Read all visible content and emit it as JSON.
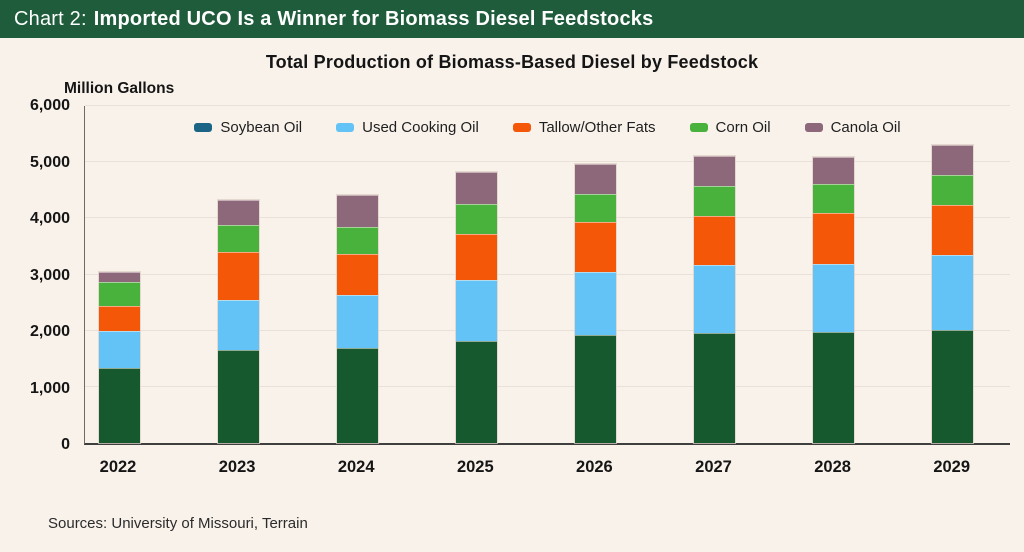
{
  "header": {
    "prefix": "Chart 2:",
    "title": "Imported UCO Is a Winner for Biomass Diesel Feedstocks"
  },
  "footer": {
    "sources": "Sources: University of Missouri, Terrain"
  },
  "chart_data": {
    "type": "bar",
    "subtype": "stacked",
    "title": "Total Production of Biomass-Based Diesel by Feedstock",
    "ylabel": "Million Gallons",
    "ylim": [
      0,
      6000
    ],
    "ytick_interval": 1000,
    "ytick_labels": [
      "0",
      "1,000",
      "2,000",
      "3,000",
      "4,000",
      "5,000",
      "6,000"
    ],
    "grid": "horizontal",
    "legend_position": "top",
    "categories": [
      "2022",
      "2023",
      "2024",
      "2025",
      "2026",
      "2027",
      "2028",
      "2029"
    ],
    "series": [
      {
        "name": "Soybean Oil",
        "color": "#17592F",
        "legend_color": "#1C6485",
        "values": [
          1340,
          1660,
          1690,
          1820,
          1920,
          1960,
          1980,
          2020
        ]
      },
      {
        "name": "Used Cooking Oil",
        "color": "#63C3F7",
        "values": [
          660,
          880,
          950,
          1080,
          1130,
          1210,
          1210,
          1330
        ]
      },
      {
        "name": "Tallow/Other Fats",
        "color": "#F45708",
        "values": [
          440,
          860,
          720,
          830,
          880,
          880,
          900,
          880
        ]
      },
      {
        "name": "Corn Oil",
        "color": "#48B23C",
        "values": [
          420,
          480,
          490,
          530,
          510,
          520,
          530,
          550
        ]
      },
      {
        "name": "Canola Oil",
        "color": "#8D677A",
        "values": [
          190,
          450,
          560,
          560,
          520,
          540,
          480,
          530
        ]
      }
    ],
    "totals": [
      3050,
      4330,
      4410,
      4820,
      4960,
      5110,
      5100,
      5310
    ],
    "colors": {
      "page_background": "#F9F2EB",
      "header_background": "#1E5C3B",
      "gridline": "#E9E0D9",
      "x_axis_line": "#3F3F3F",
      "y_axis_line": "#6E6A66"
    }
  }
}
